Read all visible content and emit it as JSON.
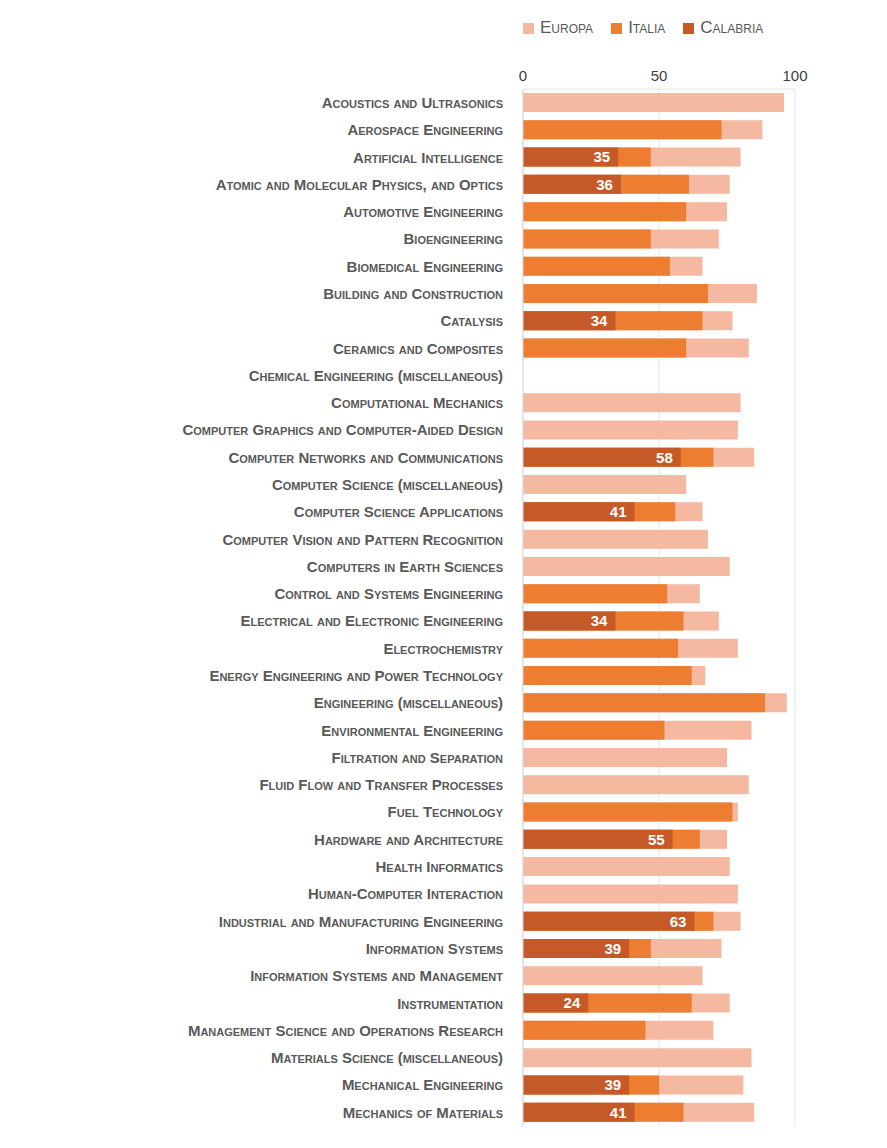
{
  "chart_data": {
    "type": "bar",
    "orientation": "horizontal",
    "legend": "top",
    "grid": true,
    "xlim": [
      0,
      100
    ],
    "xticks": [
      0,
      50,
      100
    ],
    "categories": [
      "Acoustics and Ultrasonics",
      "Aerospace Engineering",
      "Artificial Intelligence",
      "Atomic and Molecular Physics, and Optics",
      "Automotive Engineering",
      "Bioengineering",
      "Biomedical Engineering",
      "Building and Construction",
      "Catalysis",
      "Ceramics and Composites",
      "Chemical Engineering (miscellaneous)",
      "Computational Mechanics",
      "Computer Graphics and Computer-Aided Design",
      "Computer Networks and Communications",
      "Computer Science (miscellaneous)",
      "Computer Science Applications",
      "Computer Vision and Pattern Recognition",
      "Computers in Earth Sciences",
      "Control and Systems Engineering",
      "Electrical and Electronic Engineering",
      "Electrochemistry",
      "Energy Engineering and Power Technology",
      "Engineering (miscellaneous)",
      "Environmental Engineering",
      "Filtration and Separation",
      "Fluid Flow and Transfer Processes",
      "Fuel Technology",
      "Hardware and Architecture",
      "Health Informatics",
      "Human-Computer Interaction",
      "Industrial and Manufacturing Engineering",
      "Information Systems",
      "Information Systems and Management",
      "Instrumentation",
      "Management Science and Operations Research",
      "Materials Science (miscellaneous)",
      "Mechanical Engineering",
      "Mechanics of Materials"
    ],
    "series": [
      {
        "name": "Europa",
        "color": "#f4b9a0",
        "values": [
          96,
          88,
          80,
          76,
          75,
          72,
          66,
          86,
          77,
          83,
          null,
          80,
          79,
          85,
          60,
          66,
          68,
          76,
          65,
          72,
          79,
          67,
          97,
          84,
          75,
          83,
          79,
          75,
          76,
          79,
          80,
          73,
          66,
          76,
          70,
          84,
          81,
          85
        ]
      },
      {
        "name": "Italia",
        "color": "#ed7d31",
        "values": [
          null,
          73,
          47,
          61,
          60,
          47,
          54,
          68,
          66,
          60,
          null,
          null,
          null,
          70,
          null,
          56,
          null,
          null,
          53,
          59,
          57,
          62,
          89,
          52,
          null,
          null,
          77,
          65,
          null,
          null,
          70,
          47,
          null,
          62,
          45,
          null,
          50,
          59
        ]
      },
      {
        "name": "Calabria",
        "color": "#c55a28",
        "data_labels": true,
        "values": [
          null,
          null,
          35,
          36,
          null,
          null,
          null,
          null,
          34,
          null,
          null,
          null,
          null,
          58,
          null,
          41,
          null,
          null,
          null,
          34,
          null,
          null,
          null,
          null,
          null,
          null,
          null,
          55,
          null,
          null,
          63,
          39,
          null,
          24,
          null,
          null,
          39,
          41
        ]
      }
    ]
  }
}
